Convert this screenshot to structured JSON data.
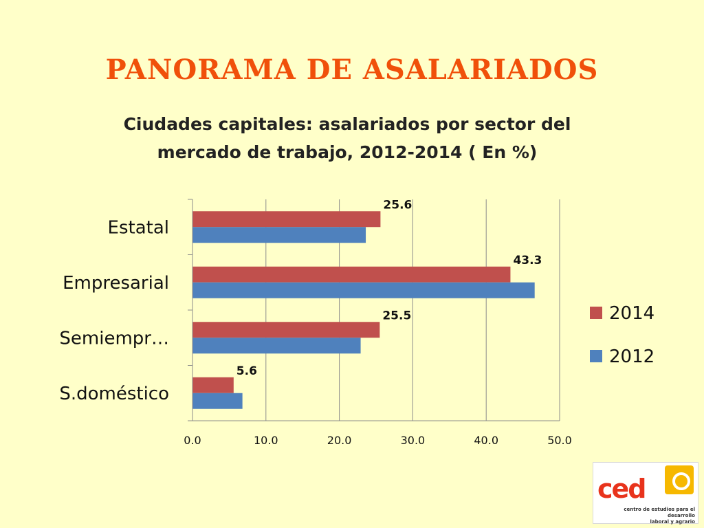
{
  "slide": {
    "title": "PANORAMA DE ASALARIADOS"
  },
  "chart_data": {
    "type": "bar",
    "orientation": "horizontal",
    "title_lines": [
      "Ciudades capitales: asalariados por sector del",
      "mercado de trabajo, 2012-2014 ( En %)"
    ],
    "categories": [
      "Estatal",
      "Empresarial",
      "Semiempr…",
      "S.doméstico"
    ],
    "series": [
      {
        "name": "2014",
        "color": "#c0504d",
        "values": [
          25.6,
          43.3,
          25.5,
          5.6
        ],
        "value_labels": [
          "25.6",
          "43.3",
          "25.5",
          "5.6"
        ]
      },
      {
        "name": "2012",
        "color": "#4f81bd",
        "values": [
          23.6,
          46.6,
          22.9,
          6.8
        ]
      }
    ],
    "xlim": [
      0,
      50
    ],
    "x_ticks": [
      "0.0",
      "10.0",
      "20.0",
      "30.0",
      "40.0",
      "50.0"
    ],
    "grid": true,
    "legend_position": "right"
  },
  "logo": {
    "word": "ced",
    "tagline_1": "centro de estudios para el desarrollo",
    "tagline_2": "laboral y agrario"
  }
}
